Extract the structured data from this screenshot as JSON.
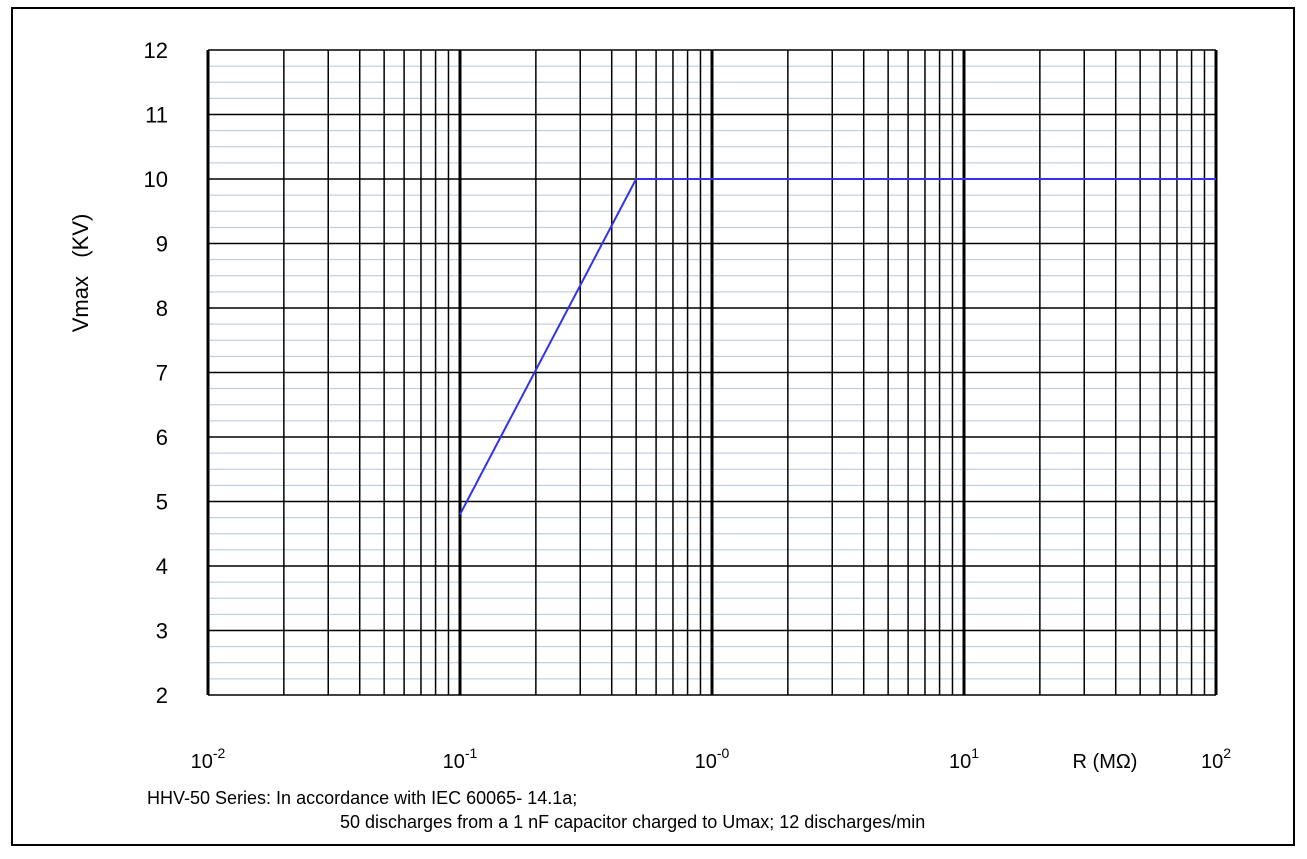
{
  "chart_data": {
    "type": "line",
    "xscale": "log",
    "xlim": [
      0.01,
      100
    ],
    "ylim": [
      2,
      12
    ],
    "grid": true,
    "ylabel": "Vmax   (KV)",
    "xlabel": "R (MΩ)",
    "yticks": [
      "2",
      "3",
      "4",
      "5",
      "6",
      "7",
      "8",
      "9",
      "10",
      "11",
      "12"
    ],
    "xticks": [
      {
        "base": "10",
        "exp": "-2"
      },
      {
        "base": "10",
        "exp": "-1"
      },
      {
        "base": "10",
        "exp": "-0"
      },
      {
        "base": "10",
        "exp": "1"
      },
      {
        "base": "10",
        "exp": "2"
      }
    ],
    "series": [
      {
        "color": "#3333ee",
        "x": [
          0.1,
          0.5,
          100
        ],
        "y": [
          4.8,
          10,
          10
        ]
      }
    ]
  },
  "notes": {
    "line1": "HHV-50 Series: In accordance with IEC 60065- 14.1a;",
    "line2": "50 discharges from a 1 nF capacitor charged to Umax; 12 discharges/min"
  }
}
